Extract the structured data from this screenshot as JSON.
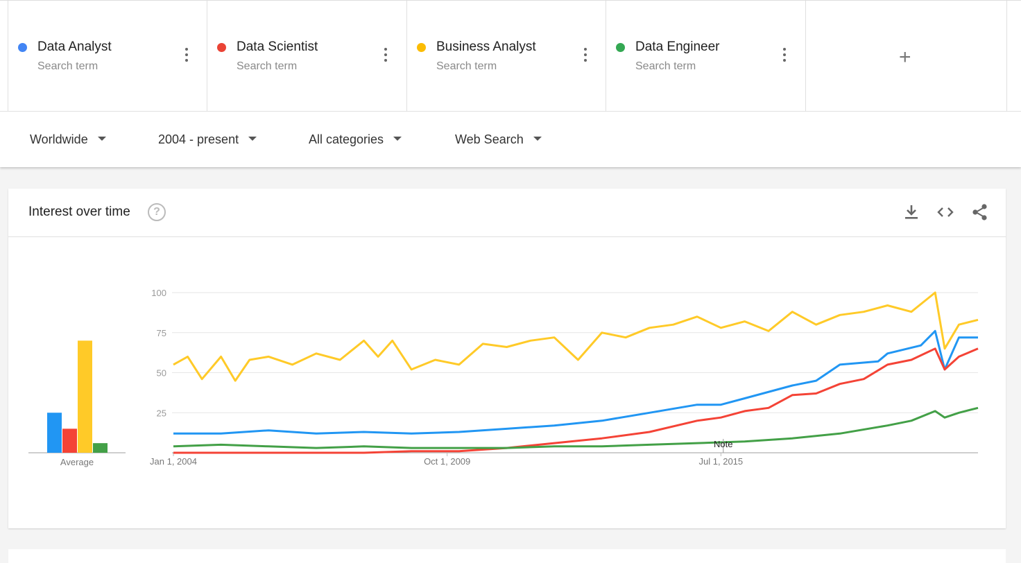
{
  "search_terms": [
    {
      "name": "Data Analyst",
      "sub": "Search term",
      "color": "#4285f4"
    },
    {
      "name": "Data Scientist",
      "sub": "Search term",
      "color": "#ea4335"
    },
    {
      "name": "Business Analyst",
      "sub": "Search term",
      "color": "#fbbc04"
    },
    {
      "name": "Data Engineer",
      "sub": "Search term",
      "color": "#34a853"
    }
  ],
  "add_term": {
    "label": "+"
  },
  "filters": {
    "region": "Worldwide",
    "time": "2004 - present",
    "category": "All categories",
    "search_type": "Web Search"
  },
  "card": {
    "title": "Interest over time",
    "help": "?",
    "icons": [
      "download-icon",
      "embed-code-icon",
      "share-icon"
    ]
  },
  "chart_data": {
    "type": "line",
    "x_ticks": [
      "Jan 1, 2004",
      "Oct 1, 2009",
      "Jul 1, 2015"
    ],
    "y_ticks": [
      25,
      50,
      75,
      100
    ],
    "ylim": [
      0,
      100
    ],
    "annotation": "Note",
    "average_label": "Average",
    "averages": [
      {
        "term": "Data Analyst",
        "value": 25,
        "color": "#2196f3"
      },
      {
        "term": "Data Scientist",
        "value": 15,
        "color": "#f44336"
      },
      {
        "term": "Business Analyst",
        "value": 70,
        "color": "#ffca28"
      },
      {
        "term": "Data Engineer",
        "value": 6,
        "color": "#43a047"
      }
    ],
    "series": [
      {
        "name": "Data Analyst",
        "color": "#2196f3",
        "points": [
          [
            2004.0,
            12
          ],
          [
            2005.0,
            12
          ],
          [
            2006.0,
            14
          ],
          [
            2007.0,
            12
          ],
          [
            2008.0,
            13
          ],
          [
            2009.0,
            12
          ],
          [
            2010.0,
            13
          ],
          [
            2011.0,
            15
          ],
          [
            2012.0,
            17
          ],
          [
            2013.0,
            20
          ],
          [
            2014.0,
            25
          ],
          [
            2015.0,
            30
          ],
          [
            2015.5,
            30
          ],
          [
            2016.0,
            34
          ],
          [
            2017.0,
            42
          ],
          [
            2017.5,
            45
          ],
          [
            2018.0,
            55
          ],
          [
            2018.8,
            57
          ],
          [
            2019.0,
            62
          ],
          [
            2019.7,
            67
          ],
          [
            2020.0,
            76
          ],
          [
            2020.2,
            52
          ],
          [
            2020.5,
            72
          ],
          [
            2020.9,
            72
          ]
        ]
      },
      {
        "name": "Data Scientist",
        "color": "#f44336",
        "points": [
          [
            2004.0,
            0
          ],
          [
            2006.0,
            0
          ],
          [
            2008.0,
            0
          ],
          [
            2009.0,
            1
          ],
          [
            2010.0,
            1
          ],
          [
            2011.0,
            3
          ],
          [
            2012.0,
            6
          ],
          [
            2013.0,
            9
          ],
          [
            2014.0,
            13
          ],
          [
            2015.0,
            20
          ],
          [
            2015.5,
            22
          ],
          [
            2016.0,
            26
          ],
          [
            2016.5,
            28
          ],
          [
            2017.0,
            36
          ],
          [
            2017.5,
            37
          ],
          [
            2018.0,
            43
          ],
          [
            2018.5,
            46
          ],
          [
            2019.0,
            55
          ],
          [
            2019.5,
            58
          ],
          [
            2020.0,
            65
          ],
          [
            2020.2,
            52
          ],
          [
            2020.5,
            60
          ],
          [
            2020.9,
            65
          ]
        ]
      },
      {
        "name": "Business Analyst",
        "color": "#ffca28",
        "points": [
          [
            2004.0,
            55
          ],
          [
            2004.3,
            60
          ],
          [
            2004.6,
            46
          ],
          [
            2005.0,
            60
          ],
          [
            2005.3,
            45
          ],
          [
            2005.6,
            58
          ],
          [
            2006.0,
            60
          ],
          [
            2006.5,
            55
          ],
          [
            2007.0,
            62
          ],
          [
            2007.5,
            58
          ],
          [
            2008.0,
            70
          ],
          [
            2008.3,
            60
          ],
          [
            2008.6,
            70
          ],
          [
            2009.0,
            52
          ],
          [
            2009.5,
            58
          ],
          [
            2010.0,
            55
          ],
          [
            2010.5,
            68
          ],
          [
            2011.0,
            66
          ],
          [
            2011.5,
            70
          ],
          [
            2012.0,
            72
          ],
          [
            2012.5,
            58
          ],
          [
            2013.0,
            75
          ],
          [
            2013.5,
            72
          ],
          [
            2014.0,
            78
          ],
          [
            2014.5,
            80
          ],
          [
            2015.0,
            85
          ],
          [
            2015.5,
            78
          ],
          [
            2016.0,
            82
          ],
          [
            2016.5,
            76
          ],
          [
            2017.0,
            88
          ],
          [
            2017.5,
            80
          ],
          [
            2018.0,
            86
          ],
          [
            2018.5,
            88
          ],
          [
            2019.0,
            92
          ],
          [
            2019.5,
            88
          ],
          [
            2020.0,
            100
          ],
          [
            2020.2,
            65
          ],
          [
            2020.5,
            80
          ],
          [
            2020.9,
            83
          ]
        ]
      },
      {
        "name": "Data Engineer",
        "color": "#43a047",
        "points": [
          [
            2004.0,
            4
          ],
          [
            2005.0,
            5
          ],
          [
            2006.0,
            4
          ],
          [
            2007.0,
            3
          ],
          [
            2008.0,
            4
          ],
          [
            2009.0,
            3
          ],
          [
            2010.0,
            3
          ],
          [
            2011.0,
            3
          ],
          [
            2012.0,
            4
          ],
          [
            2013.0,
            4
          ],
          [
            2014.0,
            5
          ],
          [
            2015.0,
            6
          ],
          [
            2016.0,
            7
          ],
          [
            2017.0,
            9
          ],
          [
            2018.0,
            12
          ],
          [
            2019.0,
            17
          ],
          [
            2019.5,
            20
          ],
          [
            2020.0,
            26
          ],
          [
            2020.2,
            22
          ],
          [
            2020.5,
            25
          ],
          [
            2020.9,
            28
          ]
        ]
      }
    ]
  }
}
